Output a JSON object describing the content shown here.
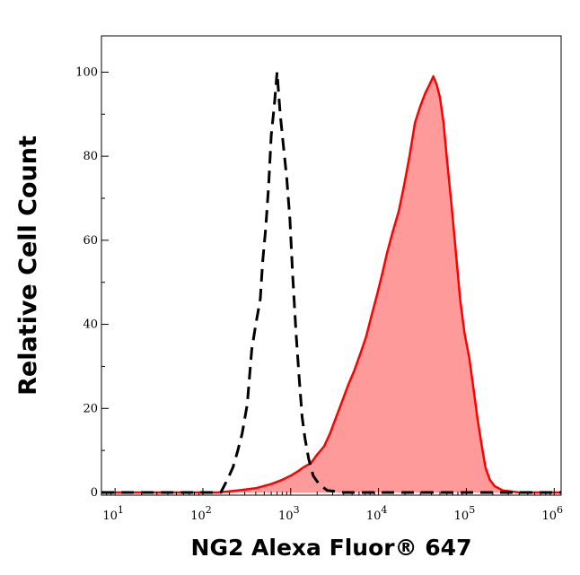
{
  "chart_data": {
    "type": "area",
    "title": "",
    "xlabel": "NG2 Alexa Fluor® 647",
    "ylabel": "Relative Cell Count",
    "xscale": "log",
    "xlim": [
      7,
      1200000
    ],
    "ylim": [
      0,
      105
    ],
    "x_ticks": [
      {
        "value": 10,
        "base": "10",
        "exp": "1"
      },
      {
        "value": 100,
        "base": "10",
        "exp": "2"
      },
      {
        "value": 1000,
        "base": "10",
        "exp": "3"
      },
      {
        "value": 10000,
        "base": "10",
        "exp": "4"
      },
      {
        "value": 100000,
        "base": "10",
        "exp": "5"
      },
      {
        "value": 1000000,
        "base": "10",
        "exp": "6"
      }
    ],
    "y_ticks": [
      {
        "value": 0,
        "label": "0"
      },
      {
        "value": 20,
        "label": "20"
      },
      {
        "value": 40,
        "label": "40"
      },
      {
        "value": 60,
        "label": "60"
      },
      {
        "value": 80,
        "label": "80"
      },
      {
        "value": 100,
        "label": "100"
      }
    ],
    "grid": false,
    "legend": "none",
    "series": [
      {
        "style": "dashed",
        "color": "#000000",
        "fill": "none",
        "points": [
          [
            7,
            0
          ],
          [
            100,
            0
          ],
          [
            160,
            0
          ],
          [
            190,
            3
          ],
          [
            220,
            6
          ],
          [
            250,
            10
          ],
          [
            280,
            14
          ],
          [
            320,
            21
          ],
          [
            360,
            34
          ],
          [
            400,
            40
          ],
          [
            450,
            46
          ],
          [
            480,
            55
          ],
          [
            520,
            63
          ],
          [
            560,
            73
          ],
          [
            600,
            85
          ],
          [
            650,
            92
          ],
          [
            700,
            100
          ],
          [
            760,
            90
          ],
          [
            820,
            83
          ],
          [
            900,
            75
          ],
          [
            980,
            65
          ],
          [
            1050,
            52
          ],
          [
            1150,
            38
          ],
          [
            1250,
            27
          ],
          [
            1350,
            18
          ],
          [
            1450,
            13
          ],
          [
            1600,
            8
          ],
          [
            1800,
            4
          ],
          [
            2100,
            2
          ],
          [
            2600,
            0.5
          ],
          [
            4000,
            0
          ],
          [
            1200000,
            0
          ]
        ]
      },
      {
        "style": "solid",
        "color": "#ff0000",
        "fill": "#ff9a9a",
        "points": [
          [
            7,
            0
          ],
          [
            150,
            0
          ],
          [
            250,
            0.5
          ],
          [
            400,
            1
          ],
          [
            600,
            2
          ],
          [
            800,
            3
          ],
          [
            1000,
            4
          ],
          [
            1200,
            5
          ],
          [
            1400,
            6
          ],
          [
            1700,
            7
          ],
          [
            2000,
            9
          ],
          [
            2400,
            11
          ],
          [
            2800,
            14
          ],
          [
            3300,
            18
          ],
          [
            3900,
            22
          ],
          [
            4600,
            26
          ],
          [
            5300,
            29
          ],
          [
            6200,
            33
          ],
          [
            7200,
            37
          ],
          [
            8300,
            42
          ],
          [
            9600,
            47
          ],
          [
            11000,
            52
          ],
          [
            12500,
            57
          ],
          [
            14500,
            62
          ],
          [
            17000,
            67
          ],
          [
            19500,
            73
          ],
          [
            22500,
            80
          ],
          [
            26000,
            88
          ],
          [
            30000,
            92
          ],
          [
            34000,
            95
          ],
          [
            38000,
            97
          ],
          [
            42000,
            99
          ],
          [
            46000,
            97
          ],
          [
            50000,
            94
          ],
          [
            55000,
            88
          ],
          [
            61000,
            78
          ],
          [
            68000,
            68
          ],
          [
            76000,
            57
          ],
          [
            85000,
            46
          ],
          [
            95000,
            38
          ],
          [
            108000,
            32
          ],
          [
            120000,
            25
          ],
          [
            135000,
            17
          ],
          [
            150000,
            11
          ],
          [
            165000,
            6
          ],
          [
            185000,
            3
          ],
          [
            210000,
            1.5
          ],
          [
            260000,
            0.5
          ],
          [
            400000,
            0
          ],
          [
            1200000,
            0
          ]
        ]
      }
    ]
  }
}
